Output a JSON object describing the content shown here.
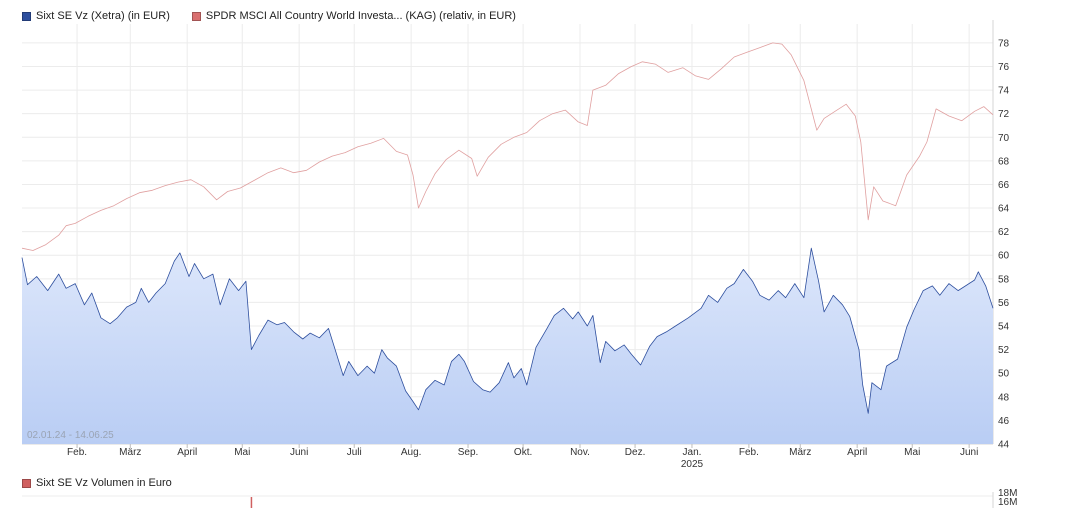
{
  "legend": {
    "series_1": "Sixt SE Vz (Xetra) (in EUR)",
    "series_2": "SPDR MSCI All Country World Investa... (KAG) (relativ, in EUR)"
  },
  "range_label": "02.01.24 - 14.06.25",
  "volume": {
    "title": "Sixt SE Vz Volumen in Euro",
    "y_ticks": [
      "18M",
      "16M"
    ],
    "color": "#d06060"
  },
  "colors": {
    "series_1": "#2e4f9e",
    "series_1_fill_top": "#dde7fb",
    "series_1_fill_bottom": "#b9cdf4",
    "series_2": "#e0a0a0",
    "swatch_1": "#2e4f9e",
    "swatch_2": "#d97070"
  },
  "chart_data": {
    "type": "area",
    "x_ticks": [
      {
        "label": "Feb.",
        "date": "2024-02-01"
      },
      {
        "label": "März",
        "date": "2024-03-01"
      },
      {
        "label": "April",
        "date": "2024-04-01"
      },
      {
        "label": "Mai",
        "date": "2024-05-01"
      },
      {
        "label": "Juni",
        "date": "2024-06-01"
      },
      {
        "label": "Juli",
        "date": "2024-07-01"
      },
      {
        "label": "Aug.",
        "date": "2024-08-01"
      },
      {
        "label": "Sep.",
        "date": "2024-09-01"
      },
      {
        "label": "Okt.",
        "date": "2024-10-01"
      },
      {
        "label": "Nov.",
        "date": "2024-11-01"
      },
      {
        "label": "Dez.",
        "date": "2024-12-01"
      },
      {
        "label": "Jan.",
        "date": "2025-01-01"
      },
      {
        "label": "Feb.",
        "date": "2025-02-01"
      },
      {
        "label": "März",
        "date": "2025-03-01"
      },
      {
        "label": "April",
        "date": "2025-04-01"
      },
      {
        "label": "Mai",
        "date": "2025-05-01"
      },
      {
        "label": "Juni",
        "date": "2025-06-01"
      }
    ],
    "year_label": {
      "label": "2025",
      "date": "2025-01-01"
    },
    "y_ticks": [
      44,
      46,
      48,
      50,
      52,
      54,
      56,
      58,
      60,
      62,
      64,
      66,
      68,
      70,
      72,
      74,
      76,
      78
    ],
    "ylim": [
      44,
      79.6
    ],
    "xlim": [
      "2024-01-02",
      "2025-06-14"
    ],
    "grid": true,
    "legend_position": "top-left",
    "series": [
      {
        "name": "Sixt SE Vz (Xetra) (in EUR)",
        "style": "area",
        "points": [
          [
            "2024-01-02",
            59.8
          ],
          [
            "2024-01-05",
            57.5
          ],
          [
            "2024-01-10",
            58.2
          ],
          [
            "2024-01-16",
            57.0
          ],
          [
            "2024-01-22",
            58.4
          ],
          [
            "2024-01-26",
            57.2
          ],
          [
            "2024-01-31",
            57.6
          ],
          [
            "2024-02-05",
            55.8
          ],
          [
            "2024-02-09",
            56.8
          ],
          [
            "2024-02-14",
            54.7
          ],
          [
            "2024-02-19",
            54.2
          ],
          [
            "2024-02-23",
            54.7
          ],
          [
            "2024-02-28",
            55.6
          ],
          [
            "2024-03-04",
            56.0
          ],
          [
            "2024-03-07",
            57.2
          ],
          [
            "2024-03-11",
            56.0
          ],
          [
            "2024-03-15",
            56.8
          ],
          [
            "2024-03-20",
            57.6
          ],
          [
            "2024-03-25",
            59.5
          ],
          [
            "2024-03-28",
            60.2
          ],
          [
            "2024-04-02",
            58.2
          ],
          [
            "2024-04-05",
            59.3
          ],
          [
            "2024-04-10",
            58.0
          ],
          [
            "2024-04-15",
            58.4
          ],
          [
            "2024-04-19",
            55.8
          ],
          [
            "2024-04-24",
            58.0
          ],
          [
            "2024-04-29",
            57.0
          ],
          [
            "2024-05-03",
            57.8
          ],
          [
            "2024-05-06",
            52.0
          ],
          [
            "2024-05-10",
            53.2
          ],
          [
            "2024-05-15",
            54.5
          ],
          [
            "2024-05-20",
            54.1
          ],
          [
            "2024-05-24",
            54.3
          ],
          [
            "2024-05-29",
            53.5
          ],
          [
            "2024-06-03",
            52.9
          ],
          [
            "2024-06-07",
            53.4
          ],
          [
            "2024-06-12",
            53.0
          ],
          [
            "2024-06-17",
            53.8
          ],
          [
            "2024-06-21",
            51.8
          ],
          [
            "2024-06-25",
            49.8
          ],
          [
            "2024-06-28",
            51.0
          ],
          [
            "2024-07-03",
            49.8
          ],
          [
            "2024-07-08",
            50.6
          ],
          [
            "2024-07-12",
            50.0
          ],
          [
            "2024-07-16",
            52.0
          ],
          [
            "2024-07-19",
            51.3
          ],
          [
            "2024-07-24",
            50.6
          ],
          [
            "2024-07-29",
            48.5
          ],
          [
            "2024-08-02",
            47.6
          ],
          [
            "2024-08-05",
            46.9
          ],
          [
            "2024-08-09",
            48.6
          ],
          [
            "2024-08-14",
            49.4
          ],
          [
            "2024-08-19",
            49.0
          ],
          [
            "2024-08-23",
            51.0
          ],
          [
            "2024-08-27",
            51.6
          ],
          [
            "2024-08-30",
            51.0
          ],
          [
            "2024-09-04",
            49.3
          ],
          [
            "2024-09-09",
            48.6
          ],
          [
            "2024-09-13",
            48.4
          ],
          [
            "2024-09-18",
            49.2
          ],
          [
            "2024-09-23",
            50.9
          ],
          [
            "2024-09-26",
            49.6
          ],
          [
            "2024-09-30",
            50.4
          ],
          [
            "2024-10-03",
            49.0
          ],
          [
            "2024-10-08",
            52.2
          ],
          [
            "2024-10-14",
            53.8
          ],
          [
            "2024-10-18",
            54.9
          ],
          [
            "2024-10-23",
            55.5
          ],
          [
            "2024-10-28",
            54.6
          ],
          [
            "2024-10-31",
            55.2
          ],
          [
            "2024-11-05",
            54.0
          ],
          [
            "2024-11-08",
            54.9
          ],
          [
            "2024-11-12",
            50.9
          ],
          [
            "2024-11-15",
            52.7
          ],
          [
            "2024-11-20",
            51.9
          ],
          [
            "2024-11-25",
            52.4
          ],
          [
            "2024-11-29",
            51.6
          ],
          [
            "2024-12-04",
            50.7
          ],
          [
            "2024-12-09",
            52.3
          ],
          [
            "2024-12-13",
            53.1
          ],
          [
            "2024-12-18",
            53.5
          ],
          [
            "2024-12-23",
            54.0
          ],
          [
            "2024-12-30",
            54.7
          ],
          [
            "2025-01-06",
            55.5
          ],
          [
            "2025-01-10",
            56.6
          ],
          [
            "2025-01-15",
            56.0
          ],
          [
            "2025-01-20",
            57.2
          ],
          [
            "2025-01-24",
            57.6
          ],
          [
            "2025-01-29",
            58.8
          ],
          [
            "2025-02-03",
            57.8
          ],
          [
            "2025-02-07",
            56.6
          ],
          [
            "2025-02-12",
            56.2
          ],
          [
            "2025-02-17",
            57.0
          ],
          [
            "2025-02-21",
            56.4
          ],
          [
            "2025-02-26",
            57.6
          ],
          [
            "2025-03-03",
            56.4
          ],
          [
            "2025-03-07",
            60.6
          ],
          [
            "2025-03-11",
            57.8
          ],
          [
            "2025-03-14",
            55.2
          ],
          [
            "2025-03-19",
            56.6
          ],
          [
            "2025-03-24",
            55.8
          ],
          [
            "2025-03-28",
            54.8
          ],
          [
            "2025-04-02",
            52.0
          ],
          [
            "2025-04-04",
            49.0
          ],
          [
            "2025-04-07",
            46.6
          ],
          [
            "2025-04-09",
            49.2
          ],
          [
            "2025-04-14",
            48.6
          ],
          [
            "2025-04-17",
            50.6
          ],
          [
            "2025-04-23",
            51.2
          ],
          [
            "2025-04-28",
            53.9
          ],
          [
            "2025-05-02",
            55.4
          ],
          [
            "2025-05-07",
            57.0
          ],
          [
            "2025-05-12",
            57.4
          ],
          [
            "2025-05-16",
            56.6
          ],
          [
            "2025-05-21",
            57.6
          ],
          [
            "2025-05-26",
            57.0
          ],
          [
            "2025-05-30",
            57.4
          ],
          [
            "2025-06-04",
            57.9
          ],
          [
            "2025-06-06",
            58.6
          ],
          [
            "2025-06-10",
            57.4
          ],
          [
            "2025-06-14",
            55.5
          ]
        ]
      },
      {
        "name": "SPDR MSCI All Country World Investa... (KAG) (relativ, in EUR)",
        "style": "line",
        "points": [
          [
            "2024-01-02",
            60.6
          ],
          [
            "2024-01-08",
            60.4
          ],
          [
            "2024-01-15",
            60.9
          ],
          [
            "2024-01-22",
            61.7
          ],
          [
            "2024-01-26",
            62.5
          ],
          [
            "2024-01-31",
            62.7
          ],
          [
            "2024-02-07",
            63.3
          ],
          [
            "2024-02-14",
            63.8
          ],
          [
            "2024-02-21",
            64.2
          ],
          [
            "2024-02-28",
            64.8
          ],
          [
            "2024-03-06",
            65.3
          ],
          [
            "2024-03-13",
            65.5
          ],
          [
            "2024-03-20",
            65.9
          ],
          [
            "2024-03-27",
            66.2
          ],
          [
            "2024-04-03",
            66.4
          ],
          [
            "2024-04-10",
            65.8
          ],
          [
            "2024-04-17",
            64.7
          ],
          [
            "2024-04-23",
            65.4
          ],
          [
            "2024-04-30",
            65.7
          ],
          [
            "2024-05-07",
            66.3
          ],
          [
            "2024-05-15",
            67.0
          ],
          [
            "2024-05-22",
            67.4
          ],
          [
            "2024-05-29",
            67.0
          ],
          [
            "2024-06-05",
            67.2
          ],
          [
            "2024-06-12",
            67.9
          ],
          [
            "2024-06-19",
            68.4
          ],
          [
            "2024-06-26",
            68.7
          ],
          [
            "2024-07-03",
            69.2
          ],
          [
            "2024-07-10",
            69.5
          ],
          [
            "2024-07-17",
            69.9
          ],
          [
            "2024-07-24",
            68.8
          ],
          [
            "2024-07-30",
            68.5
          ],
          [
            "2024-08-02",
            66.8
          ],
          [
            "2024-08-05",
            64.0
          ],
          [
            "2024-08-09",
            65.4
          ],
          [
            "2024-08-14",
            66.9
          ],
          [
            "2024-08-20",
            68.1
          ],
          [
            "2024-08-27",
            68.9
          ],
          [
            "2024-09-03",
            68.2
          ],
          [
            "2024-09-06",
            66.7
          ],
          [
            "2024-09-12",
            68.3
          ],
          [
            "2024-09-19",
            69.4
          ],
          [
            "2024-09-26",
            70.0
          ],
          [
            "2024-10-03",
            70.4
          ],
          [
            "2024-10-10",
            71.4
          ],
          [
            "2024-10-17",
            72.0
          ],
          [
            "2024-10-24",
            72.3
          ],
          [
            "2024-10-31",
            71.3
          ],
          [
            "2024-11-05",
            71.0
          ],
          [
            "2024-11-08",
            74.0
          ],
          [
            "2024-11-15",
            74.4
          ],
          [
            "2024-11-22",
            75.4
          ],
          [
            "2024-11-29",
            76.0
          ],
          [
            "2024-12-05",
            76.4
          ],
          [
            "2024-12-12",
            76.2
          ],
          [
            "2024-12-19",
            75.5
          ],
          [
            "2024-12-27",
            75.9
          ],
          [
            "2025-01-03",
            75.2
          ],
          [
            "2025-01-10",
            74.9
          ],
          [
            "2025-01-17",
            75.8
          ],
          [
            "2025-01-24",
            76.8
          ],
          [
            "2025-01-31",
            77.2
          ],
          [
            "2025-02-07",
            77.6
          ],
          [
            "2025-02-14",
            78.0
          ],
          [
            "2025-02-19",
            77.9
          ],
          [
            "2025-02-24",
            77.0
          ],
          [
            "2025-03-03",
            74.8
          ],
          [
            "2025-03-10",
            70.6
          ],
          [
            "2025-03-14",
            71.6
          ],
          [
            "2025-03-21",
            72.3
          ],
          [
            "2025-03-26",
            72.8
          ],
          [
            "2025-03-31",
            71.8
          ],
          [
            "2025-04-03",
            69.6
          ],
          [
            "2025-04-07",
            63.0
          ],
          [
            "2025-04-10",
            65.8
          ],
          [
            "2025-04-15",
            64.6
          ],
          [
            "2025-04-22",
            64.2
          ],
          [
            "2025-04-28",
            66.8
          ],
          [
            "2025-05-05",
            68.4
          ],
          [
            "2025-05-09",
            69.6
          ],
          [
            "2025-05-14",
            72.4
          ],
          [
            "2025-05-21",
            71.8
          ],
          [
            "2025-05-28",
            71.4
          ],
          [
            "2025-06-04",
            72.2
          ],
          [
            "2025-06-09",
            72.6
          ],
          [
            "2025-06-14",
            71.9
          ]
        ]
      }
    ]
  }
}
